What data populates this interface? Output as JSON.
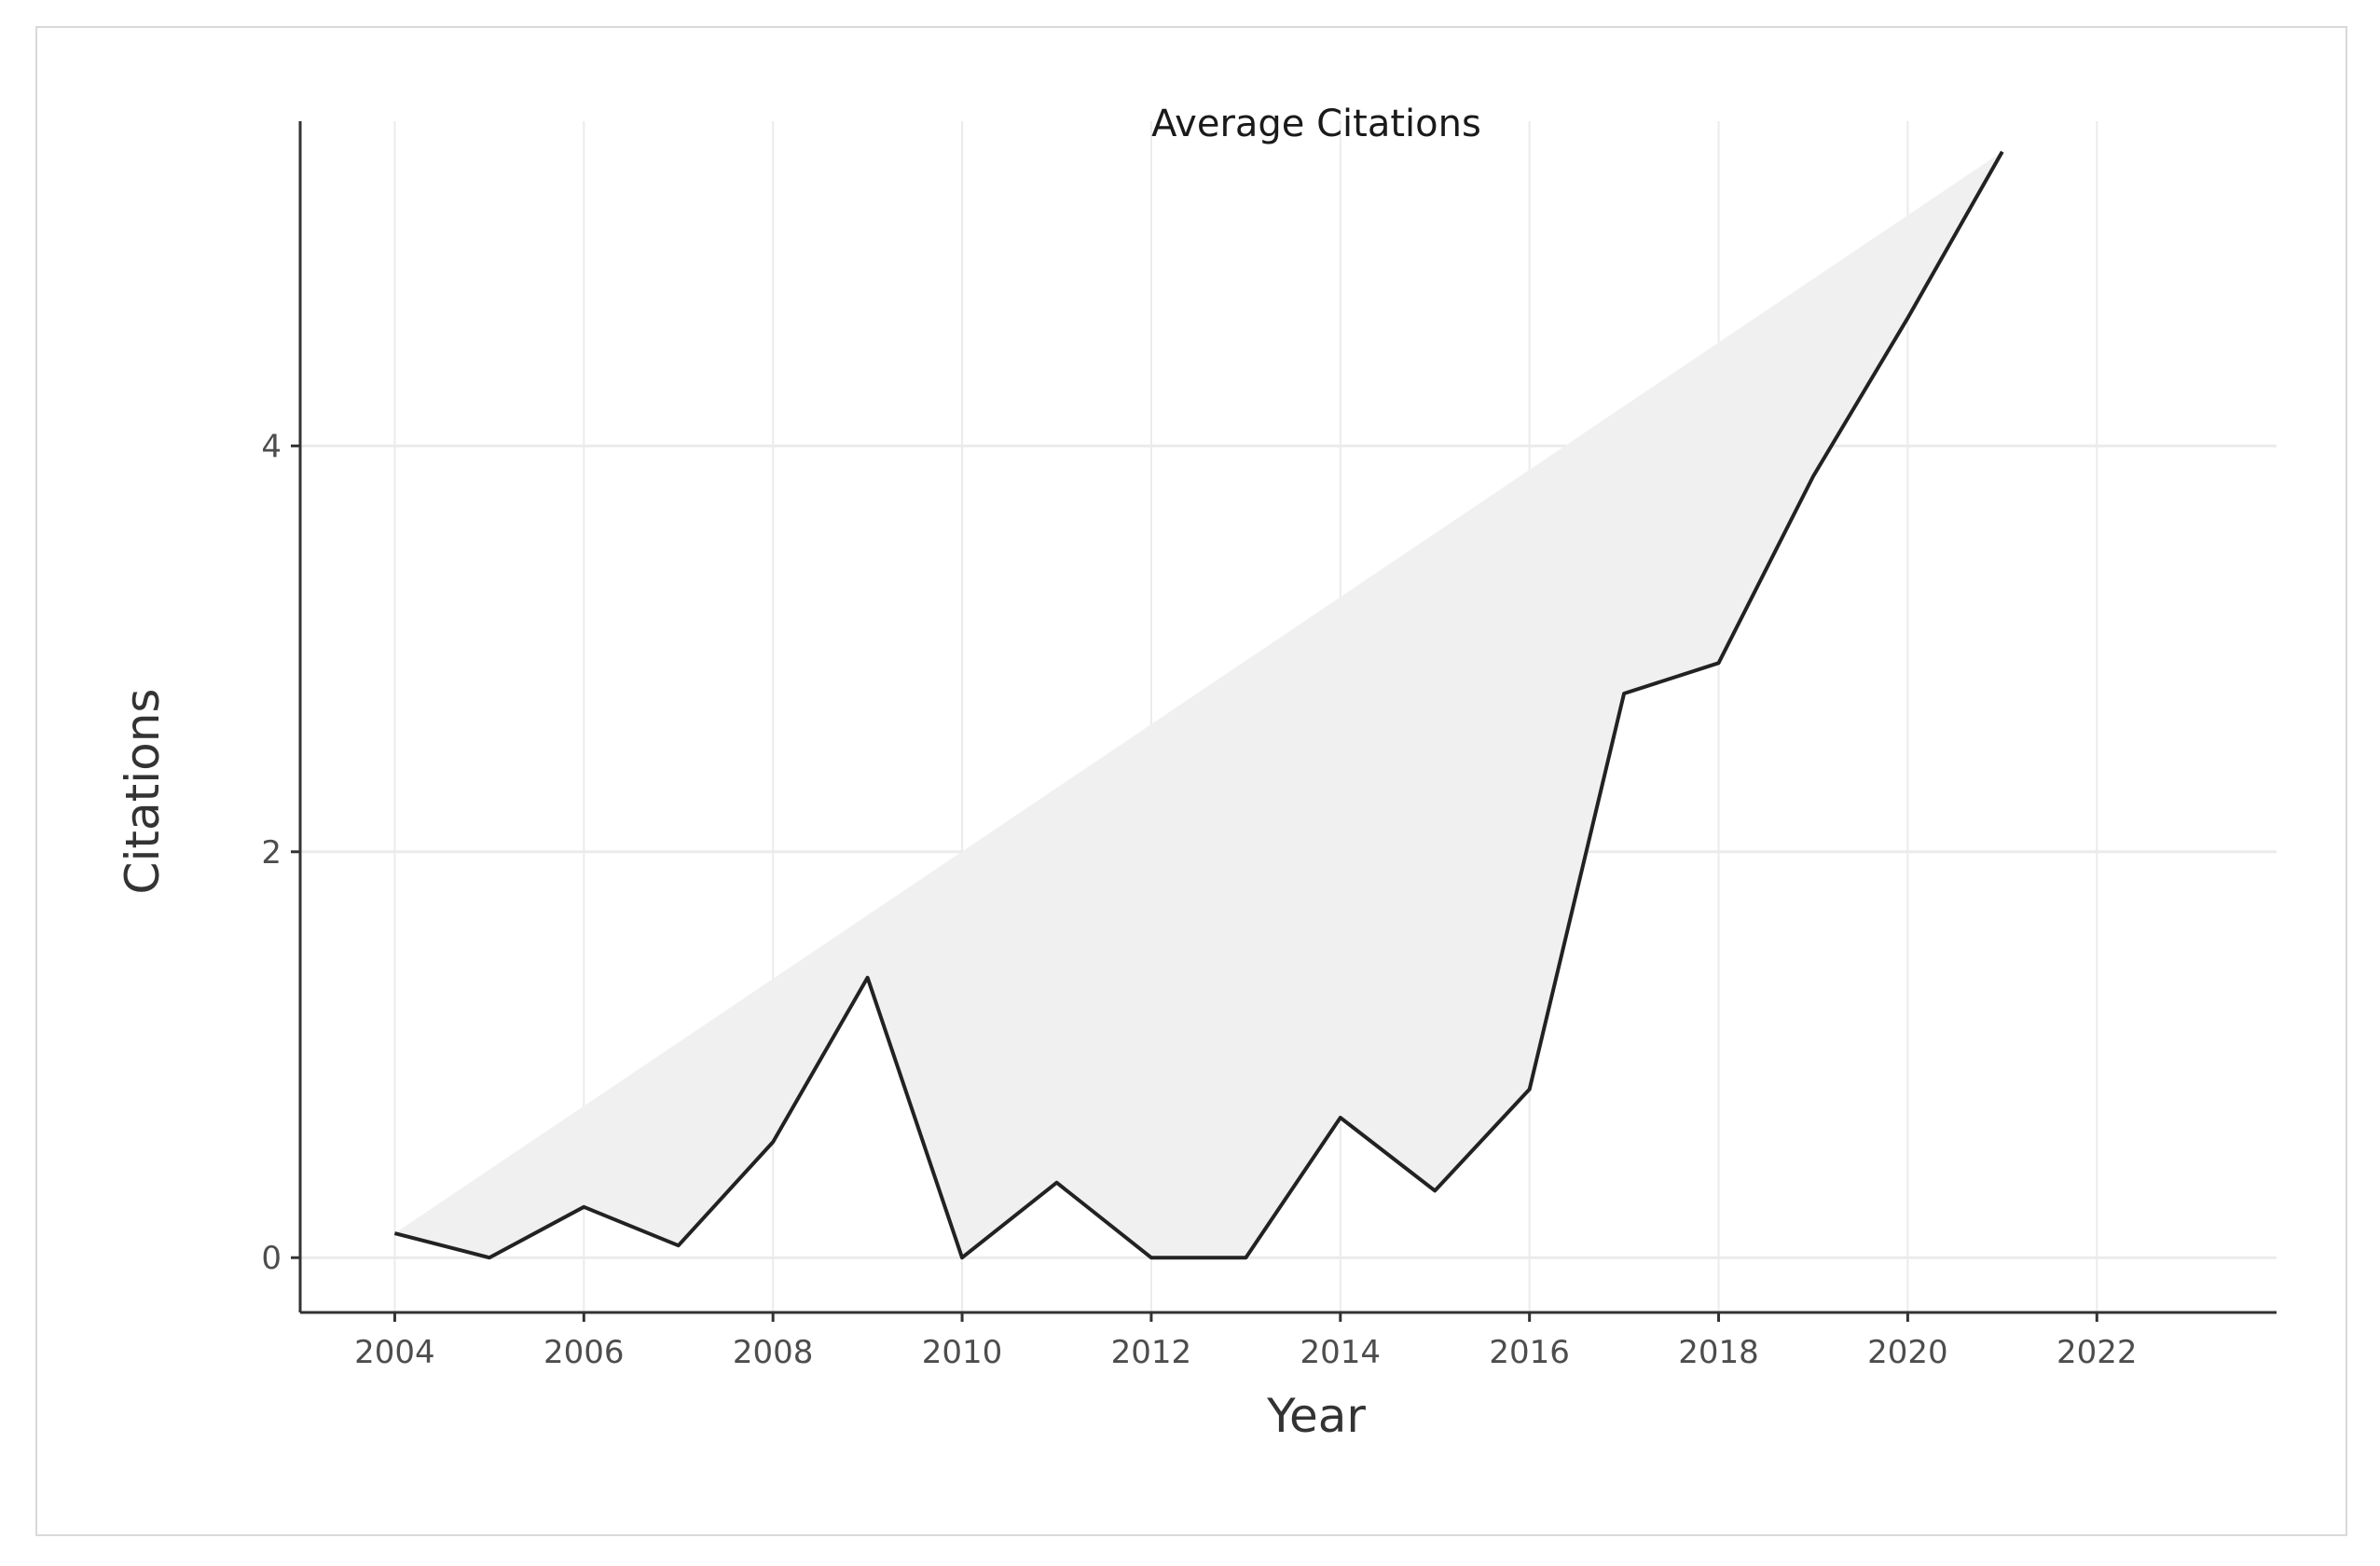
{
  "chart_data": {
    "type": "area",
    "title": "Average Citations",
    "xlabel": "Year",
    "ylabel": "Citations",
    "x": [
      2004,
      2005,
      2006,
      2007,
      2008,
      2009,
      2010,
      2011,
      2012,
      2013,
      2014,
      2015,
      2016,
      2017,
      2018,
      2019,
      2020,
      2021
    ],
    "series": [
      {
        "values": [
          0.12,
          0.0,
          0.25,
          0.06,
          0.57,
          1.38,
          0.0,
          0.37,
          0.0,
          0.0,
          0.69,
          0.33,
          0.83,
          2.78,
          2.93,
          3.85,
          4.63,
          5.45
        ]
      }
    ],
    "xlim": [
      2003,
      2023.9
    ],
    "ylim": [
      -0.27,
      5.6
    ],
    "x_ticks": [
      2004,
      2006,
      2008,
      2010,
      2012,
      2014,
      2016,
      2018,
      2020,
      2022
    ],
    "y_ticks": [
      0,
      2,
      4
    ],
    "x_tick_labels": [
      "2004",
      "2006",
      "2008",
      "2010",
      "2012",
      "2014",
      "2016",
      "2018",
      "2020",
      "2022"
    ],
    "y_tick_labels": [
      "0",
      "2",
      "4"
    ],
    "grid": true,
    "colors": {
      "line": "#222222",
      "fill": "#f0f0f0",
      "grid": "#ebebeb",
      "axis": "#333333"
    }
  }
}
